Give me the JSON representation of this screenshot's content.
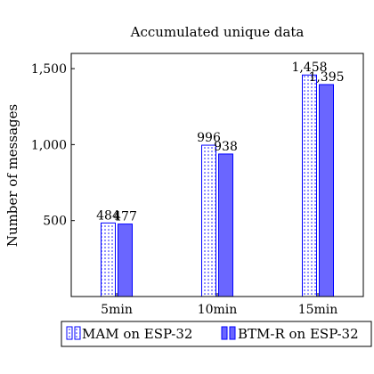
{
  "chart_data": {
    "type": "bar",
    "title": "Accumulated unique data",
    "xlabel": "",
    "ylabel": "Number of messages",
    "categories": [
      "5min",
      "10min",
      "15min"
    ],
    "ylim": [
      0,
      1600
    ],
    "yticks": [
      500,
      1000,
      1500
    ],
    "ytick_labels": [
      "500",
      "1,000",
      "1,500"
    ],
    "grid": false,
    "legend_position": "bottom",
    "series": [
      {
        "name": "MAM on ESP-32",
        "values": [
          484,
          996,
          1458
        ],
        "labels": [
          "484",
          "996",
          "1,458"
        ],
        "color": "#0000ff",
        "fill": "#ffffff",
        "pattern": "dots"
      },
      {
        "name": "BTM-R on ESP-32",
        "values": [
          477,
          938,
          1395
        ],
        "labels": [
          "477",
          "938",
          "1,395"
        ],
        "color": "#0000ff",
        "fill": "#6a66ff",
        "pattern": "solid"
      }
    ]
  }
}
